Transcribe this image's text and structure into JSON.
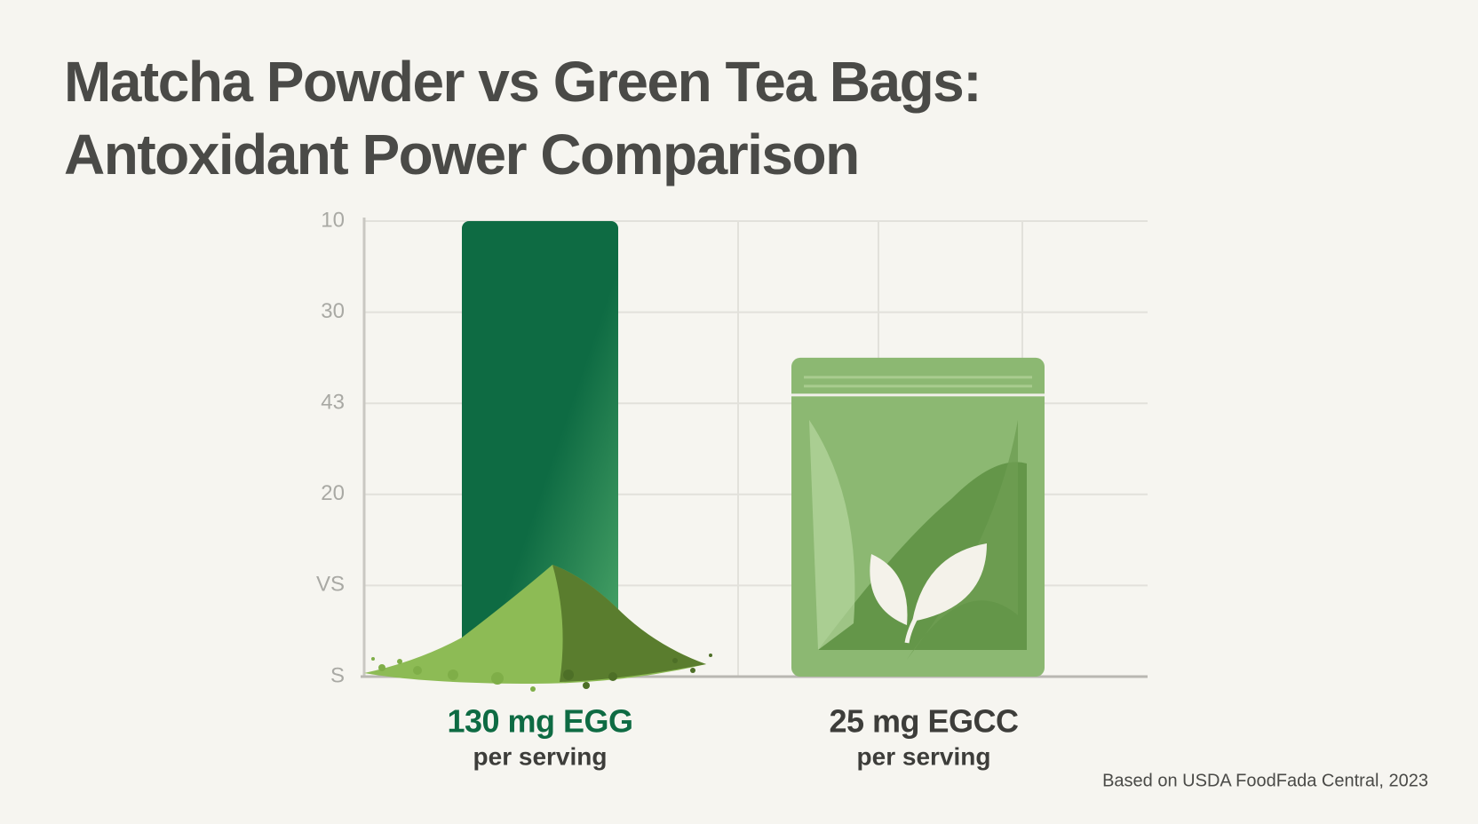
{
  "chart_data": {
    "type": "bar",
    "title": [
      "Matcha Powder vs Green Tea Bags:",
      "Antoxidant Power Comparison"
    ],
    "categories": [
      "130 mg EGG",
      "25 mg EGCC"
    ],
    "category_subtitles": [
      "per serving",
      "per serving"
    ],
    "values": [
      5.0,
      3.5
    ],
    "colors": [
      "#0e6b43",
      "#8cb872"
    ],
    "ylim": [
      0,
      5
    ],
    "yticks": [
      {
        "value": 0,
        "label": "S"
      },
      {
        "value": 1,
        "label": "VS"
      },
      {
        "value": 2,
        "label": "20"
      },
      {
        "value": 3,
        "label": "43"
      },
      {
        "value": 4,
        "label": "30"
      },
      {
        "value": 5,
        "label": "10"
      }
    ],
    "grid": true,
    "source": "Based on USDA FoodFada Central, 2023"
  }
}
